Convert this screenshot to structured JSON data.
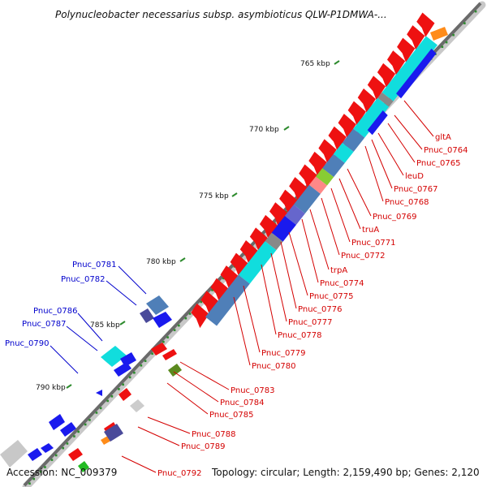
{
  "title": "Polynucleobacter necessarius subsp. asymbioticus QLW-P1DMWA-...",
  "footer": {
    "accession": "Accession: NC_009379",
    "summary": "Topology: circular; Length: 2,159,490 bp; Genes: 2,120"
  },
  "colors": {
    "forward": "#ee1111",
    "reverse": "#1a1aee",
    "cyan": "#11dddd",
    "steel": "#4f7fb8",
    "label_red": "#d40000",
    "label_blue": "#0000cc",
    "tick": "#2e8b2e"
  },
  "scale_labels": [
    {
      "text": "765 kbp"
    },
    {
      "text": "770 kbp"
    },
    {
      "text": "775 kbp"
    },
    {
      "text": "780 kbp"
    },
    {
      "text": "785 kbp"
    },
    {
      "text": "790 kbp"
    }
  ],
  "labels_right": [
    "gltA",
    "Pnuc_0764",
    "Pnuc_0765",
    "leuD",
    "Pnuc_0767",
    "Pnuc_0768",
    "Pnuc_0769",
    "truA",
    "Pnuc_0771",
    "Pnuc_0772",
    "trpA",
    "Pnuc_0774",
    "Pnuc_0775",
    "Pnuc_0776",
    "Pnuc_0777",
    "Pnuc_0778",
    "Pnuc_0779",
    "Pnuc_0780",
    "Pnuc_0783",
    "Pnuc_0784",
    "Pnuc_0785",
    "Pnuc_0788",
    "Pnuc_0789",
    "Pnuc_0792"
  ],
  "labels_left": [
    "Pnuc_0781",
    "Pnuc_0782",
    "Pnuc_0786",
    "Pnuc_0787",
    "Pnuc_0790"
  ]
}
